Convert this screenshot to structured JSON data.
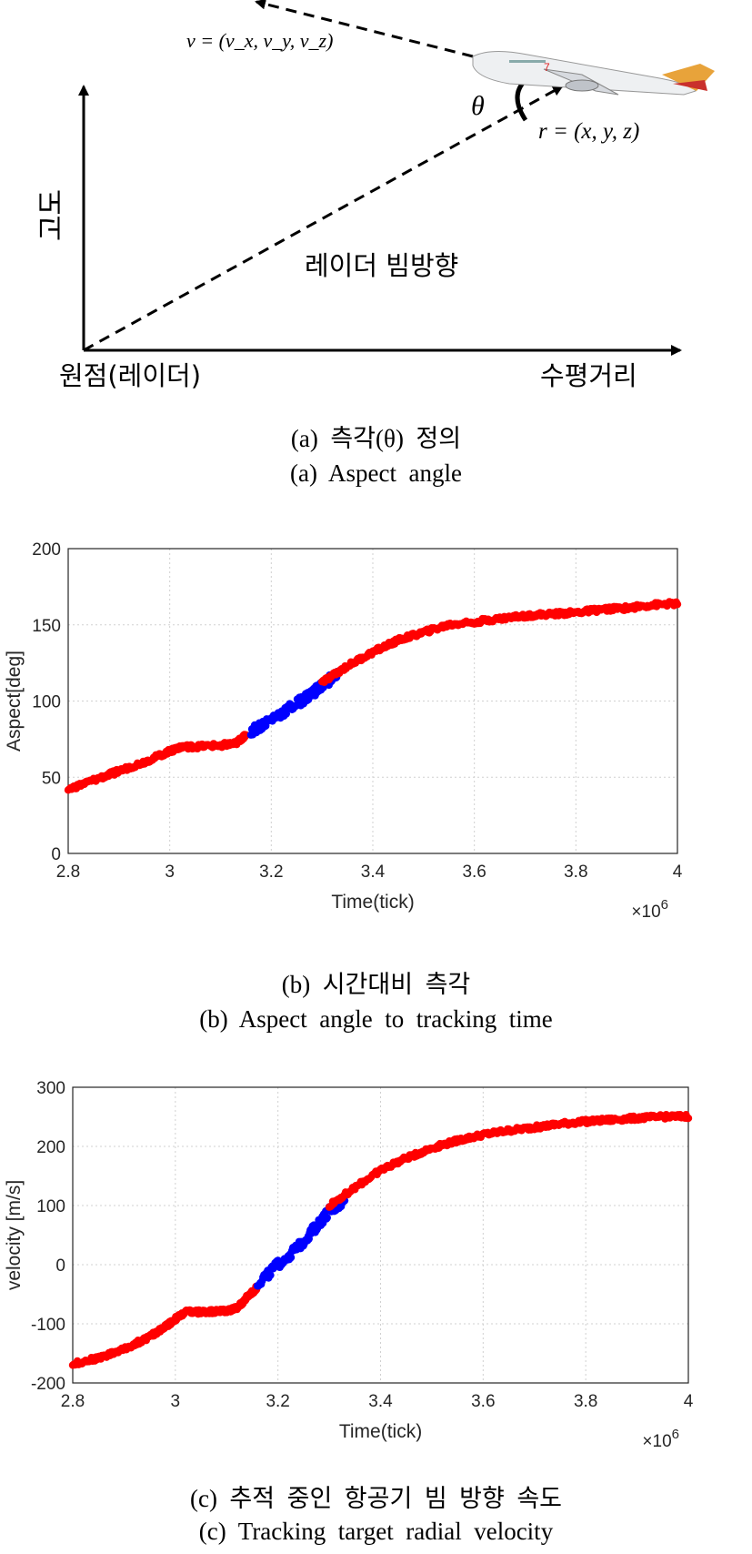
{
  "figure_a": {
    "v_label": "v = (v_x, v_y, v_z)",
    "theta_label": "θ",
    "r_label": "r  = (x,  y,  z)",
    "altitude_label": "고도",
    "beam_label": "레이더 빔방향",
    "origin_label": "원점(레이더)",
    "range_label": "수평거리",
    "caption_ko": "(a)  측각(θ)  정의",
    "caption_en": "(a)  Aspect  angle"
  },
  "figure_b": {
    "caption_ko": "(b)  시간대비  측각",
    "caption_en": "(b)  Aspect  angle  to  tracking  time"
  },
  "figure_c": {
    "caption_ko": "(c)  추적  중인  항공기  빔  방향  속도",
    "caption_en": "(c)  Tracking  target  radial  velocity"
  },
  "chart_data": [
    {
      "type": "scatter",
      "xlabel": "Time(tick)",
      "ylabel": "Aspect[deg]",
      "x_multiplier": "×10^6",
      "xlim": [
        2.8,
        4.0
      ],
      "ylim": [
        0,
        200
      ],
      "xticks": [
        2.8,
        3,
        3.2,
        3.4,
        3.6,
        3.8,
        4
      ],
      "yticks": [
        0,
        50,
        100,
        150,
        200
      ],
      "grid": true,
      "colors": {
        "red": "#ff0000",
        "blue": "#0000ff"
      },
      "series": [
        {
          "color": "red",
          "x": [
            2.8,
            2.85,
            2.9,
            2.95,
            3.0,
            3.02,
            3.05,
            3.1,
            3.13,
            3.15
          ],
          "y": [
            42,
            48,
            54,
            60,
            67,
            70,
            70,
            71,
            72,
            78
          ]
        },
        {
          "color": "blue",
          "x": [
            3.16,
            3.2,
            3.25,
            3.28,
            3.3,
            3.33
          ],
          "y": [
            80,
            88,
            98,
            105,
            110,
            118
          ]
        },
        {
          "color": "red",
          "x": [
            3.3,
            3.35,
            3.4,
            3.45,
            3.5,
            3.55,
            3.6,
            3.65,
            3.7,
            3.75,
            3.8,
            3.85,
            3.9,
            3.95,
            4.0
          ],
          "y": [
            112,
            123,
            132,
            140,
            145,
            150,
            152,
            154,
            156,
            157,
            158,
            160,
            161,
            163,
            164
          ]
        }
      ]
    },
    {
      "type": "scatter",
      "xlabel": "Time(tick)",
      "ylabel": "velocity [m/s]",
      "x_multiplier": "×10^6",
      "xlim": [
        2.8,
        4.0
      ],
      "ylim": [
        -200,
        300
      ],
      "xticks": [
        2.8,
        3,
        3.2,
        3.4,
        3.6,
        3.8,
        4
      ],
      "yticks": [
        -200,
        -100,
        0,
        100,
        200,
        300
      ],
      "grid": true,
      "colors": {
        "red": "#ff0000",
        "blue": "#0000ff"
      },
      "series": [
        {
          "color": "red",
          "x": [
            2.8,
            2.85,
            2.9,
            2.95,
            2.98,
            3.0,
            3.02,
            3.05,
            3.08,
            3.1,
            3.12,
            3.14,
            3.16
          ],
          "y": [
            -168,
            -158,
            -143,
            -122,
            -105,
            -92,
            -80,
            -80,
            -79,
            -78,
            -74,
            -55,
            -38
          ]
        },
        {
          "color": "blue",
          "x": [
            3.16,
            3.2,
            3.24,
            3.27,
            3.3,
            3.33
          ],
          "y": [
            -32,
            0,
            30,
            60,
            90,
            108
          ]
        },
        {
          "color": "red",
          "x": [
            3.3,
            3.35,
            3.4,
            3.45,
            3.5,
            3.55,
            3.6,
            3.65,
            3.7,
            3.75,
            3.8,
            3.85,
            3.9,
            3.95,
            4.0
          ],
          "y": [
            100,
            130,
            160,
            180,
            197,
            210,
            220,
            227,
            232,
            238,
            242,
            245,
            248,
            250,
            251
          ]
        }
      ]
    }
  ]
}
